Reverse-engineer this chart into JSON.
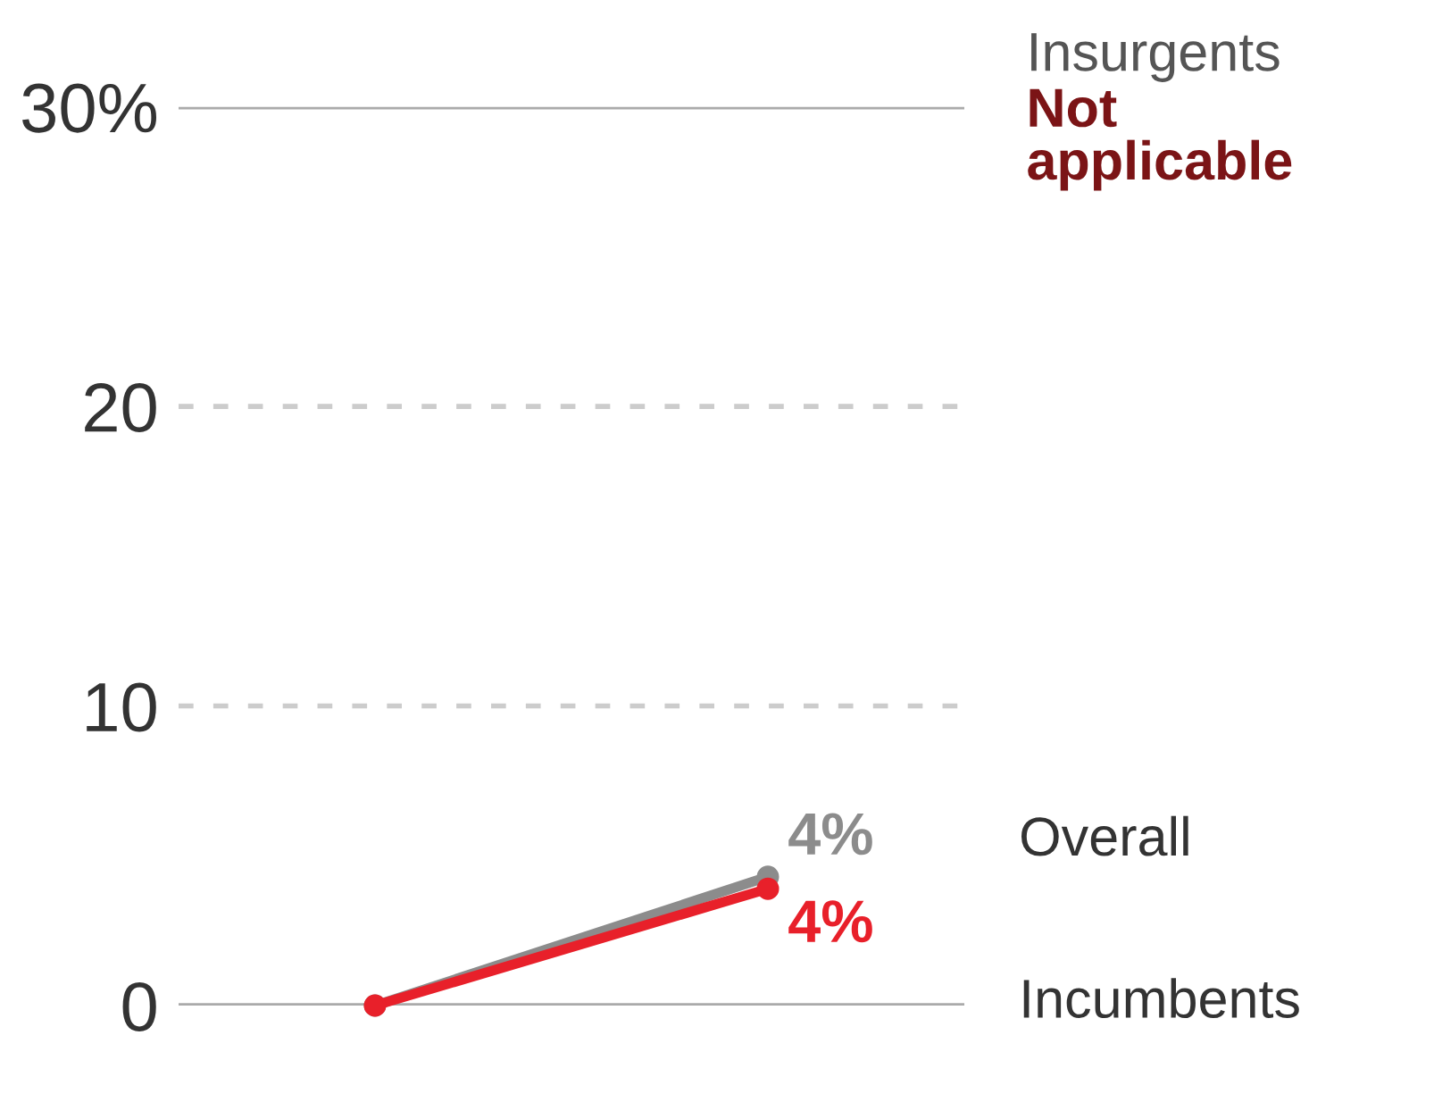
{
  "chart_data": {
    "type": "line",
    "categories": [
      null,
      null
    ],
    "series": [
      {
        "name": "Overall",
        "color": "#8c8c8c",
        "values": [
          0,
          4.3
        ],
        "value_labels": [
          null,
          "4%"
        ]
      },
      {
        "name": "Incumbents",
        "color": "#e8202a",
        "values": [
          0,
          3.9
        ],
        "value_labels": [
          null,
          "4%"
        ]
      }
    ],
    "annotations": [
      "Insurgents",
      "Not applicable"
    ],
    "ylim": [
      0,
      30
    ],
    "yticks": [
      0,
      10,
      20,
      {
        "value": 30,
        "label": "30%"
      }
    ],
    "grid": "y",
    "marker": "circle",
    "line_style": "solid",
    "legend": false
  }
}
